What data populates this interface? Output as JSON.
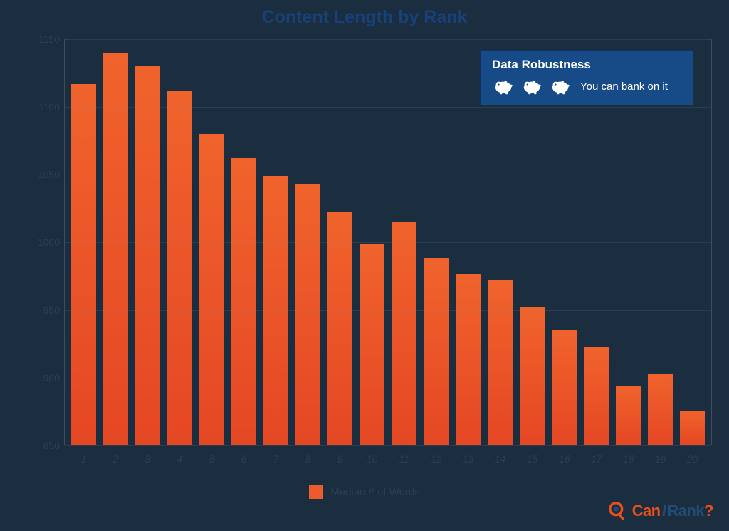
{
  "title": "Content Length by Rank",
  "title_fontsize": 25,
  "background_color": "#1a2e40",
  "chart": {
    "type": "bar",
    "categories": [
      "1",
      "2",
      "3",
      "4",
      "5",
      "6",
      "7",
      "8",
      "9",
      "10",
      "11",
      "12",
      "13",
      "14",
      "15",
      "16",
      "17",
      "18",
      "19",
      "20"
    ],
    "values": [
      1117,
      1140,
      1130,
      1112,
      1080,
      1062,
      1049,
      1043,
      1022,
      998,
      1015,
      988,
      976,
      972,
      952,
      935,
      922,
      894,
      902,
      875
    ],
    "bar_gradient_top": "#f0632c",
    "bar_gradient_bottom": "#e54724",
    "bar_width_ratio": 0.76,
    "ylim": [
      850,
      1150
    ],
    "ytick_step": 50,
    "yticks": [
      850,
      900,
      950,
      1000,
      1050,
      1100,
      1150
    ],
    "grid_color": "rgba(120,140,156,0.18)",
    "axis_color": "#3d4f5f",
    "label_color": "#2d3f4f",
    "label_fontsize": 14
  },
  "legend": {
    "swatch_color": "#ee5a2c",
    "label": "Median # of Words"
  },
  "robustness": {
    "box_bg": "#174b87",
    "box_border": "#0d3260",
    "title": "Data Robustness",
    "icon_count": 3,
    "icon_color": "#ffffff",
    "text": "You can bank on it"
  },
  "brand": {
    "can": "Can",
    "i": "I",
    "rank": "Rank",
    "q": "?",
    "accent": "#e94e1b",
    "dark": "#234b78"
  }
}
